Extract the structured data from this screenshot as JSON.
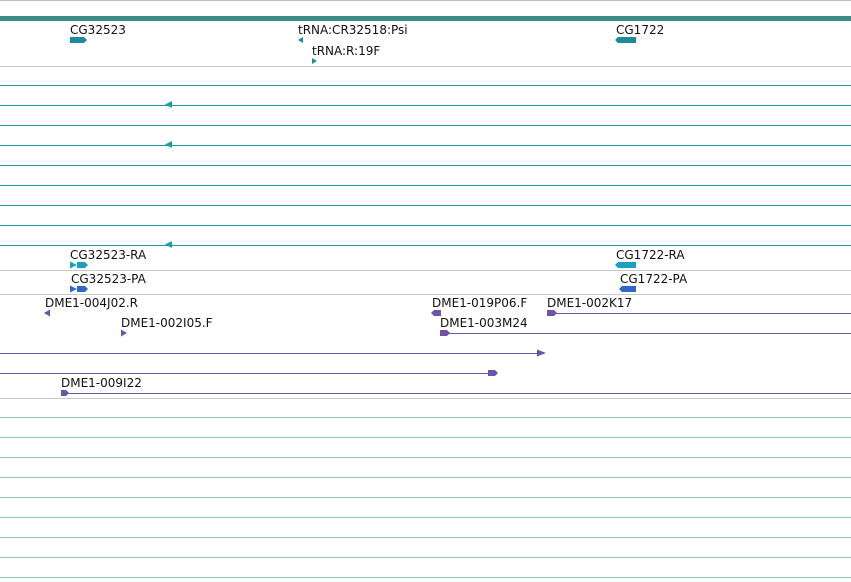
{
  "colors": {
    "ruler": "#3f8a88",
    "gene": "#1e8b9d",
    "transcript": "#1d9fc0",
    "protein": "#2f67c8",
    "est": "#6d54a8",
    "grid_gray": "#c6cccc",
    "grid_teal": "#1e9aa5",
    "grid_light": "#8fc4cc"
  },
  "tracks": {
    "genes": [
      {
        "label": "CG32523",
        "strand": "+"
      },
      {
        "label": "tRNA:CR32518:Psi",
        "strand": "-"
      },
      {
        "label": "tRNA:R:19F",
        "strand": "+"
      },
      {
        "label": "CG1722",
        "strand": "-"
      }
    ],
    "transcripts": [
      {
        "label": "CG32523-RA",
        "strand": "+"
      },
      {
        "label": "CG1722-RA",
        "strand": "-"
      }
    ],
    "proteins": [
      {
        "label": "CG32523-PA",
        "strand": "+"
      },
      {
        "label": "CG1722-PA",
        "strand": "-"
      }
    ],
    "ests": [
      {
        "label": "DME1-004J02.R",
        "strand": "-"
      },
      {
        "label": "DME1-019P06.F",
        "strand": "-"
      },
      {
        "label": "DME1-002K17",
        "strand": "+"
      },
      {
        "label": "DME1-002I05.F",
        "strand": "+"
      },
      {
        "label": "DME1-003M24",
        "strand": "+"
      },
      {
        "label": "DME1-009I22",
        "strand": "+"
      }
    ]
  }
}
